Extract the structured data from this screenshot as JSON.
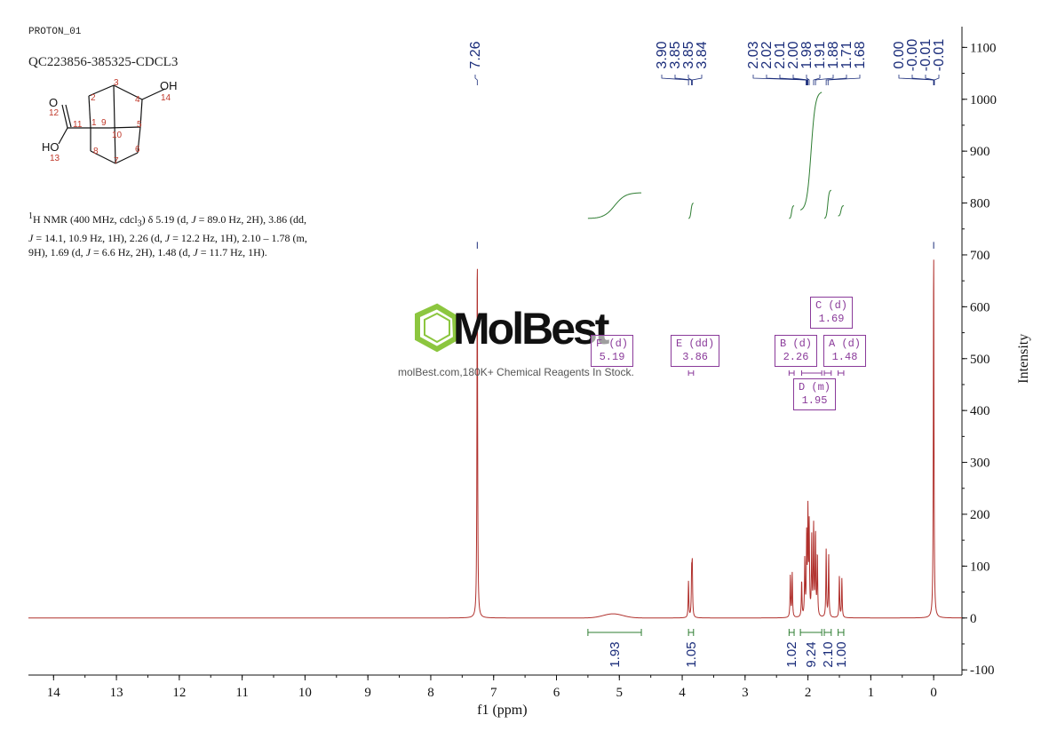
{
  "header": {
    "experiment": "PROTON_01",
    "sample_id": "QC223856-385325-CDCL3"
  },
  "structure": {
    "atoms": [
      "2",
      "3",
      "4",
      "OH",
      "14",
      "12",
      "O",
      "11",
      "1",
      "9",
      "5",
      "10",
      "HO",
      "13",
      "8",
      "7",
      "6"
    ]
  },
  "nmr_text": {
    "sup": "1",
    "pre": "H NMR (400 MHz, cdcl",
    "sub": "3",
    "p1": ") δ 5.19 (d, ",
    "j": "J",
    "p2": " = 89.0 Hz, 2H), 3.86 (dd,",
    "p3": " = 14.1, 10.9 Hz, 1H), 2.26 (d, ",
    "p4": " = 12.2 Hz, 1H), 2.10 – 1.78 (m,",
    "p5": "9H), 1.69 (d, ",
    "p6": " = 6.6 Hz, 2H), 1.48 (d, ",
    "p7": " = 11.7 Hz, 1H)."
  },
  "watermark": {
    "brand": "MolBest",
    "tagline": "molBest.com,180K+ Chemical Reagents In Stock."
  },
  "chart_data": {
    "type": "line",
    "xlabel": "f1 (ppm)",
    "ylabel": "Intensity",
    "xlim": [
      14.4,
      -0.45
    ],
    "ylim": [
      -110,
      1140
    ],
    "x_ticks": [
      14,
      13,
      12,
      11,
      10,
      9,
      8,
      7,
      6,
      5,
      4,
      3,
      2,
      1,
      0
    ],
    "y_ticks": [
      -100,
      0,
      100,
      200,
      300,
      400,
      500,
      600,
      700,
      800,
      900,
      1000,
      1100
    ],
    "peaks": [
      {
        "ppm": 7.26,
        "height": 715
      },
      {
        "ppm": 3.9,
        "height": 70
      },
      {
        "ppm": 3.85,
        "height": 80
      },
      {
        "ppm": 3.84,
        "height": 95
      },
      {
        "ppm": 2.28,
        "height": 80
      },
      {
        "ppm": 2.25,
        "height": 85
      },
      {
        "ppm": 2.1,
        "height": 70
      },
      {
        "ppm": 2.05,
        "height": 110
      },
      {
        "ppm": 2.02,
        "height": 150
      },
      {
        "ppm": 2.0,
        "height": 195
      },
      {
        "ppm": 1.98,
        "height": 170
      },
      {
        "ppm": 1.94,
        "height": 150
      },
      {
        "ppm": 1.91,
        "height": 175
      },
      {
        "ppm": 1.88,
        "height": 160
      },
      {
        "ppm": 1.85,
        "height": 120
      },
      {
        "ppm": 1.71,
        "height": 130
      },
      {
        "ppm": 1.67,
        "height": 120
      },
      {
        "ppm": 1.5,
        "height": 80
      },
      {
        "ppm": 1.46,
        "height": 75
      },
      {
        "ppm": 0.0,
        "height": 715
      }
    ],
    "broad_peak": {
      "ppm": 5.1,
      "height": 8
    },
    "peak_labels": [
      "7.26",
      "3.90",
      "3.85",
      "3.85",
      "3.84",
      "2.03",
      "2.02",
      "2.01",
      "2.00",
      "1.98",
      "1.91",
      "1.88",
      "1.71",
      "1.68",
      "0.00",
      "-0.00",
      "-0.01",
      "-0.01"
    ],
    "peak_label_ppm": [
      7.26,
      3.9,
      3.85,
      3.85,
      3.84,
      2.03,
      2.02,
      2.01,
      2.0,
      1.98,
      1.91,
      1.88,
      1.71,
      1.68,
      0.0,
      -0.0,
      -0.01,
      -0.01
    ],
    "integrals": [
      {
        "from": 5.5,
        "to": 4.65,
        "value": "1.93",
        "y_start": 770,
        "y_end": 820
      },
      {
        "from": 3.9,
        "to": 3.82,
        "value": "1.05",
        "y_start": 770,
        "y_end": 800
      },
      {
        "from": 2.3,
        "to": 2.22,
        "value": "1.02",
        "y_start": 770,
        "y_end": 795
      },
      {
        "from": 2.12,
        "to": 1.78,
        "value": "9.24",
        "y_start": 785,
        "y_end": 1015
      },
      {
        "from": 1.74,
        "to": 1.63,
        "value": "2.10",
        "y_start": 770,
        "y_end": 825
      },
      {
        "from": 1.52,
        "to": 1.43,
        "value": "1.00",
        "y_start": 775,
        "y_end": 795
      }
    ],
    "multiplets": [
      {
        "letter": "F (d)",
        "shift": "5.19"
      },
      {
        "letter": "E (dd)",
        "shift": "3.86"
      },
      {
        "letter": "B (d)",
        "shift": "2.26"
      },
      {
        "letter": "C (d)",
        "shift": "1.69"
      },
      {
        "letter": "A (d)",
        "shift": "1.48"
      },
      {
        "letter": "D (m)",
        "shift": "1.95"
      }
    ]
  }
}
